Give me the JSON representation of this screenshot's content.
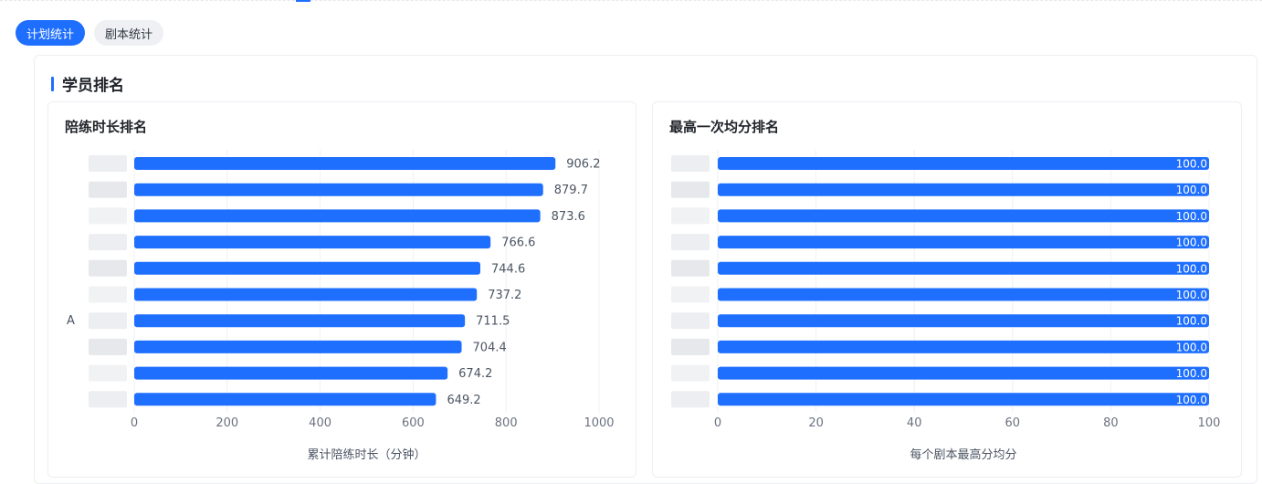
{
  "tabs": [
    {
      "label": "计划统计",
      "active": true
    },
    {
      "label": "剧本统计",
      "active": false
    }
  ],
  "section": {
    "title": "学员排名"
  },
  "accent_color": "#1f6fff",
  "chart_data": [
    {
      "type": "bar",
      "orientation": "horizontal",
      "title": "陪练时长排名",
      "xlabel": "累计陪练时长（分钟）",
      "ylabel": "",
      "xlim": [
        0,
        1000
      ],
      "xticks": [
        0,
        200,
        400,
        600,
        800,
        1000
      ],
      "categories": [
        "",
        "",
        "",
        "",
        "",
        "",
        "A",
        "",
        "",
        ""
      ],
      "values": [
        906.2,
        879.7,
        873.6,
        766.6,
        744.6,
        737.2,
        711.5,
        704.4,
        674.2,
        649.2
      ],
      "value_labels": [
        "906.2",
        "879.7",
        "873.6",
        "766.6",
        "744.6",
        "737.2",
        "711.5",
        "704.4",
        "674.2",
        "649.2"
      ],
      "label_position": "outside",
      "grid": true,
      "bar_color": "#1f6fff"
    },
    {
      "type": "bar",
      "orientation": "horizontal",
      "title": "最高一次均分排名",
      "xlabel": "每个剧本最高分均分",
      "ylabel": "",
      "xlim": [
        0,
        100
      ],
      "xticks": [
        0,
        20,
        40,
        60,
        80,
        100
      ],
      "categories": [
        "",
        "",
        "",
        "",
        "",
        "",
        "",
        "",
        "",
        ""
      ],
      "values": [
        100,
        100,
        100,
        100,
        100,
        100,
        100,
        100,
        100,
        100
      ],
      "value_labels": [
        "100.0",
        "100.0",
        "100.0",
        "100.0",
        "100.0",
        "100.0",
        "100.0",
        "100.0",
        "100.0",
        "100.0"
      ],
      "label_position": "inside-end",
      "grid": true,
      "bar_color": "#1f6fff"
    }
  ]
}
